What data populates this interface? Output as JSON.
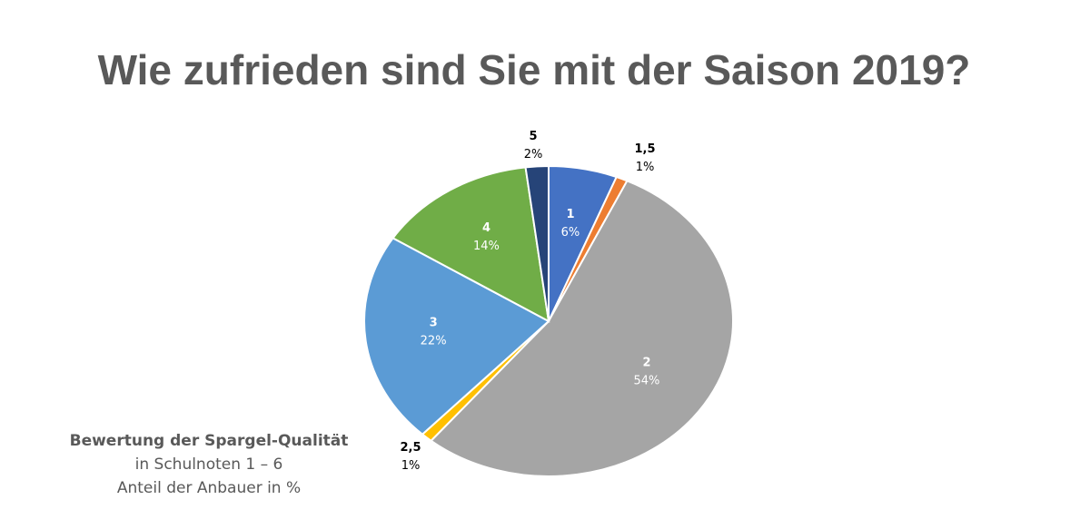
{
  "title": "Wie zufrieden sind Sie mit der Saison 2019?",
  "caption": {
    "line1": "Bewertung der Spargel-Qualität",
    "line2": "in Schulnoten 1 – 6",
    "line3": "Anteil der Anbauer in %"
  },
  "chart_data": {
    "type": "pie",
    "title": "Wie zufrieden sind Sie mit der Saison 2019?",
    "categories": [
      "1",
      "1,5",
      "2",
      "2,5",
      "3",
      "4",
      "5"
    ],
    "values": [
      6,
      1,
      54,
      1,
      22,
      14,
      2
    ],
    "labels": [
      "6%",
      "1%",
      "54%",
      "1%",
      "22%",
      "14%",
      "2%"
    ],
    "colors": [
      "#4472C4",
      "#ED7D31",
      "#A5A5A5",
      "#FFC000",
      "#5B9BD5",
      "#70AD47",
      "#264478"
    ],
    "label_colors": [
      "#ffffff",
      "#000000",
      "#ffffff",
      "#000000",
      "#ffffff",
      "#ffffff",
      "#000000"
    ],
    "label_placement": [
      "inside",
      "outside",
      "inside",
      "outside",
      "inside",
      "inside",
      "outside"
    ],
    "start": "top",
    "direction": "clockwise"
  }
}
